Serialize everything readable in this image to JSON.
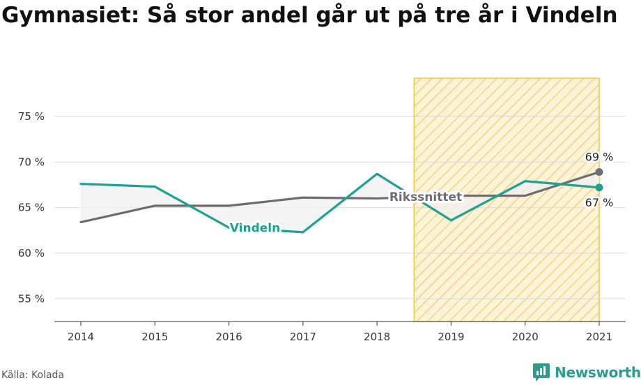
{
  "chart_data": {
    "type": "line",
    "title": "Gymnasiet: Så stor andel går ut på tre år i Vindeln",
    "categories": [
      "2014",
      "2015",
      "2016",
      "2017",
      "2018",
      "2019",
      "2020",
      "2021"
    ],
    "series": [
      {
        "name": "Vindeln",
        "values": [
          67.6,
          67.3,
          62.8,
          62.3,
          68.7,
          63.6,
          67.9,
          67.2
        ],
        "color": "#18a392",
        "end_label": "67 %"
      },
      {
        "name": "Rikssnittet",
        "values": [
          63.4,
          65.2,
          65.2,
          66.1,
          66.0,
          66.3,
          66.3,
          68.9
        ],
        "color": "#6e6b74",
        "end_label": "69 %"
      }
    ],
    "ylim": [
      52.5,
      79.2
    ],
    "yticks": [
      55,
      60,
      65,
      70,
      75
    ],
    "ytick_labels": [
      "55 %",
      "60 %",
      "65 %",
      "70 %",
      "75 %"
    ],
    "xlabel": "",
    "ylabel": "",
    "grid": "horizontal",
    "highlight_range": [
      "2019",
      "2021"
    ],
    "highlight_color": "#f5c542"
  },
  "source": "Källa: Kolada",
  "brand": "Newsworthy",
  "brand_color": "#2a9d8f"
}
